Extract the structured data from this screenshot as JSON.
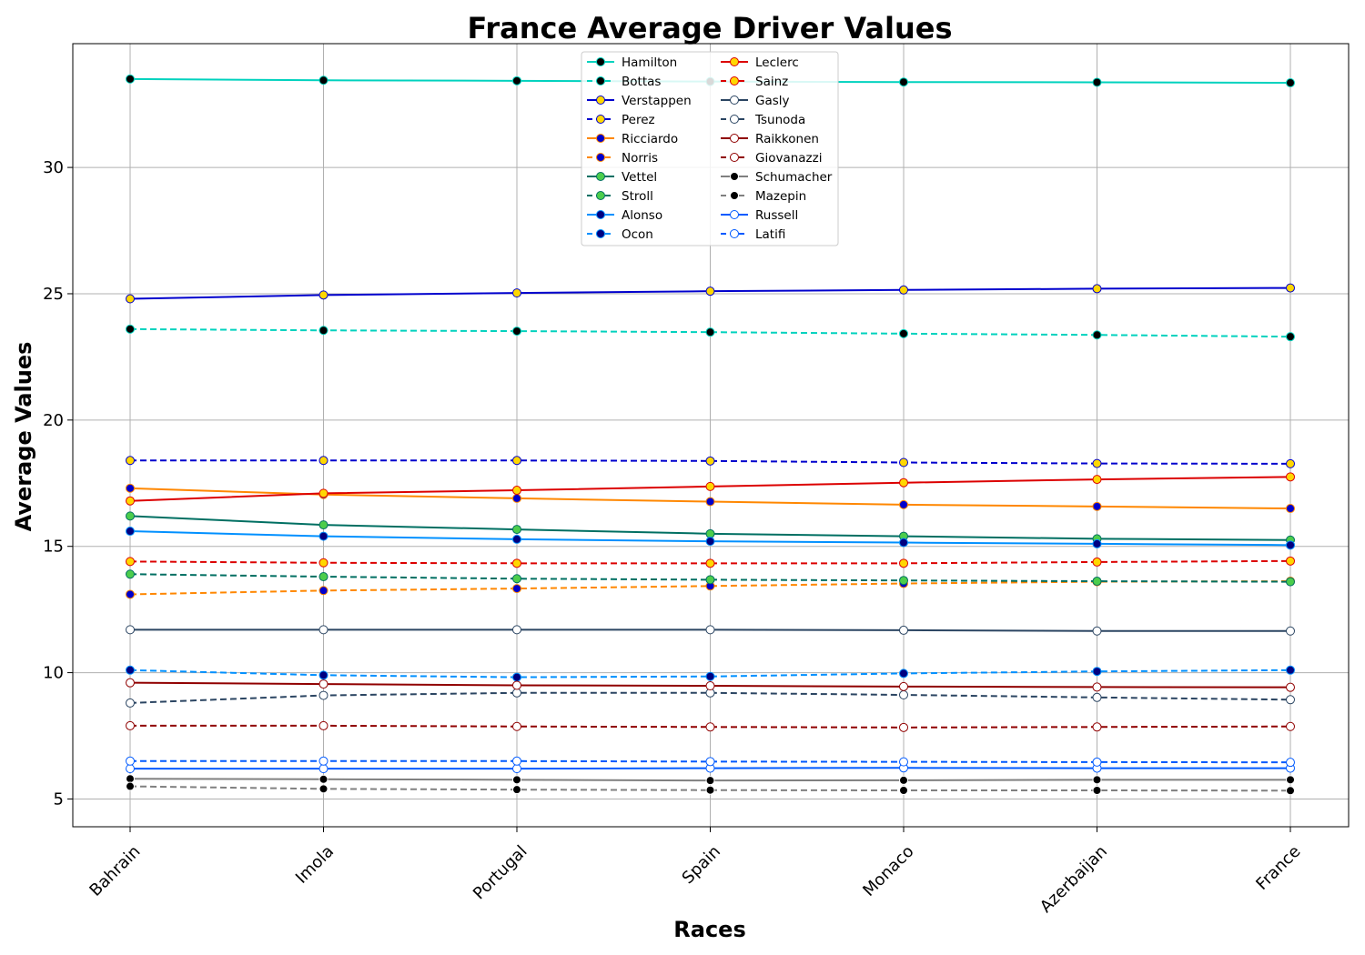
{
  "chart_data": {
    "type": "line",
    "title": "France Average Driver Values",
    "xlabel": "Races",
    "ylabel": "Average Values",
    "categories": [
      "Bahrain",
      "Imola",
      "Portugal",
      "Spain",
      "Monaco",
      "Azerbaijan",
      "France"
    ],
    "ylim": [
      3.9,
      34.9
    ],
    "yticks": [
      5,
      10,
      15,
      20,
      25,
      30
    ],
    "grid": true,
    "legend_placement": "top-center",
    "legend_columns": 2,
    "series": [
      {
        "name": "Hamilton",
        "color": "#00d2be",
        "dash": "solid",
        "marker_fill": "#000000",
        "marker_edge": "#00d2be",
        "values": [
          33.5,
          33.45,
          33.43,
          33.4,
          33.38,
          33.37,
          33.35
        ]
      },
      {
        "name": "Bottas",
        "color": "#00d2be",
        "dash": "dashed",
        "marker_fill": "#000000",
        "marker_edge": "#00d2be",
        "values": [
          23.6,
          23.55,
          23.52,
          23.48,
          23.42,
          23.37,
          23.3
        ]
      },
      {
        "name": "Verstappen",
        "color": "#0000cd",
        "dash": "solid",
        "marker_fill": "#ffd700",
        "marker_edge": "#0000cd",
        "values": [
          24.8,
          24.95,
          25.03,
          25.1,
          25.15,
          25.2,
          25.23
        ]
      },
      {
        "name": "Perez",
        "color": "#0000cd",
        "dash": "dashed",
        "marker_fill": "#ffd700",
        "marker_edge": "#0000cd",
        "values": [
          18.4,
          18.4,
          18.4,
          18.38,
          18.32,
          18.28,
          18.27
        ]
      },
      {
        "name": "Ricciardo",
        "color": "#ff8700",
        "dash": "solid",
        "marker_fill": "#0000cd",
        "marker_edge": "#ff8700",
        "values": [
          17.3,
          17.05,
          16.9,
          16.77,
          16.65,
          16.58,
          16.5
        ]
      },
      {
        "name": "Norris",
        "color": "#ff8700",
        "dash": "dashed",
        "marker_fill": "#0000cd",
        "marker_edge": "#ff8700",
        "values": [
          13.1,
          13.25,
          13.33,
          13.43,
          13.53,
          13.6,
          13.62
        ]
      },
      {
        "name": "Vettel",
        "color": "#006f62",
        "dash": "solid",
        "marker_fill": "#4ccd4c",
        "marker_edge": "#006f62",
        "values": [
          16.2,
          15.85,
          15.67,
          15.5,
          15.4,
          15.3,
          15.25
        ]
      },
      {
        "name": "Stroll",
        "color": "#006f62",
        "dash": "dashed",
        "marker_fill": "#4ccd4c",
        "marker_edge": "#006f62",
        "values": [
          13.9,
          13.8,
          13.72,
          13.68,
          13.65,
          13.62,
          13.6
        ]
      },
      {
        "name": "Alonso",
        "color": "#0090ff",
        "dash": "solid",
        "marker_fill": "#000080",
        "marker_edge": "#0090ff",
        "values": [
          15.6,
          15.4,
          15.28,
          15.2,
          15.15,
          15.1,
          15.05
        ]
      },
      {
        "name": "Ocon",
        "color": "#0090ff",
        "dash": "dashed",
        "marker_fill": "#000080",
        "marker_edge": "#0090ff",
        "values": [
          10.1,
          9.9,
          9.82,
          9.85,
          9.97,
          10.05,
          10.1
        ]
      },
      {
        "name": "Leclerc",
        "color": "#dc0000",
        "dash": "solid",
        "marker_fill": "#ffd700",
        "marker_edge": "#dc0000",
        "values": [
          16.8,
          17.1,
          17.22,
          17.37,
          17.52,
          17.65,
          17.75
        ]
      },
      {
        "name": "Sainz",
        "color": "#dc0000",
        "dash": "dashed",
        "marker_fill": "#ffd700",
        "marker_edge": "#dc0000",
        "values": [
          14.4,
          14.35,
          14.33,
          14.33,
          14.33,
          14.38,
          14.42
        ]
      },
      {
        "name": "Gasly",
        "color": "#2b4562",
        "dash": "solid",
        "marker_fill": "#ffffff",
        "marker_edge": "#2b4562",
        "values": [
          11.7,
          11.7,
          11.7,
          11.7,
          11.68,
          11.65,
          11.65
        ]
      },
      {
        "name": "Tsunoda",
        "color": "#2b4562",
        "dash": "dashed",
        "marker_fill": "#ffffff",
        "marker_edge": "#2b4562",
        "values": [
          8.8,
          9.1,
          9.2,
          9.2,
          9.12,
          9.02,
          8.93
        ]
      },
      {
        "name": "Raikkonen",
        "color": "#900000",
        "dash": "solid",
        "marker_fill": "#ffffff",
        "marker_edge": "#900000",
        "values": [
          9.6,
          9.55,
          9.5,
          9.48,
          9.45,
          9.43,
          9.42
        ]
      },
      {
        "name": "Giovanazzi",
        "color": "#900000",
        "dash": "dashed",
        "marker_fill": "#ffffff",
        "marker_edge": "#900000",
        "values": [
          7.9,
          7.9,
          7.87,
          7.85,
          7.83,
          7.85,
          7.87
        ]
      },
      {
        "name": "Schumacher",
        "color": "#808080",
        "dash": "solid",
        "marker_fill": "#000000",
        "marker_edge": "#ffffff",
        "values": [
          5.8,
          5.78,
          5.76,
          5.73,
          5.74,
          5.76,
          5.76
        ]
      },
      {
        "name": "Mazepin",
        "color": "#808080",
        "dash": "dashed",
        "marker_fill": "#000000",
        "marker_edge": "#ffffff",
        "values": [
          5.5,
          5.4,
          5.37,
          5.35,
          5.34,
          5.34,
          5.33
        ]
      },
      {
        "name": "Russell",
        "color": "#005aff",
        "dash": "solid",
        "marker_fill": "#ffffff",
        "marker_edge": "#005aff",
        "values": [
          6.2,
          6.2,
          6.2,
          6.22,
          6.23,
          6.22,
          6.22
        ]
      },
      {
        "name": "Latifi",
        "color": "#005aff",
        "dash": "dashed",
        "marker_fill": "#ffffff",
        "marker_edge": "#005aff",
        "values": [
          6.5,
          6.5,
          6.5,
          6.48,
          6.47,
          6.46,
          6.45
        ]
      }
    ]
  }
}
